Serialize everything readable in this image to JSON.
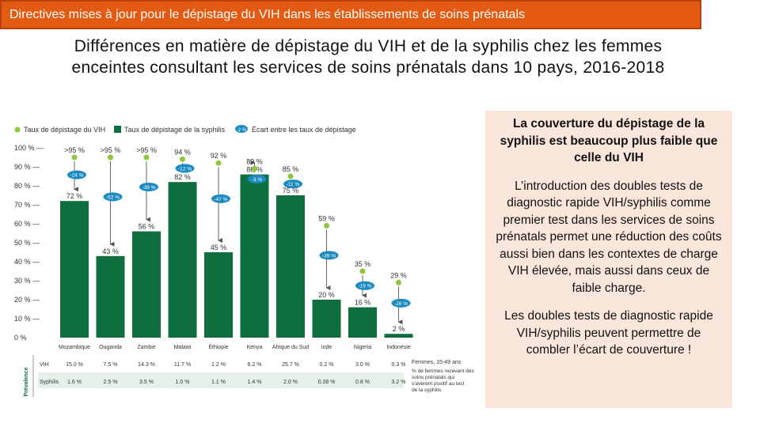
{
  "header": {
    "title": "Directives mises à jour pour le dépistage du VIH dans les établissements de soins prénatals"
  },
  "subtitle": {
    "line1": "Différences en matière de dépistage du VIH et de la syphilis chez les femmes",
    "line2": "enceintes consultant les services de soins prénatals dans 10 pays, 2016-2018"
  },
  "info_box": {
    "p1": "La couverture du dépistage de la syphilis est beaucoup plus faible que celle du VIH",
    "p2": "L’introduction des doubles tests de diagnostic rapide VIH/syphilis comme premier test dans les services de soins prénatals permet une réduction des coûts aussi bien dans les contextes de charge VIH élevée, mais aussi dans ceux de faible charge.",
    "p3": "Les doubles tests de diagnostic rapide VIH/syphilis peuvent permettre de combler l’écart de couverture !"
  },
  "colors": {
    "bar": "#0f6e3e",
    "hiv_dot": "#8dc63f",
    "gap_badge": "#1b8ac0",
    "axis_text": "#333333"
  },
  "chart_data": {
    "type": "bar",
    "legend": {
      "hiv": "Taux de dépistage du VIH",
      "syphilis": "Taux de dépistage de la syphilis",
      "gap": "Écart entre les taux de dépistage",
      "gap_badge": "-2 %"
    },
    "ylim": [
      0,
      100
    ],
    "yticks": [
      0,
      10,
      20,
      30,
      40,
      50,
      60,
      70,
      80,
      90,
      100
    ],
    "ytick_labels": [
      "0 %",
      "10 % —",
      "20 % —",
      "30 % —",
      "40 % —",
      "50 % —",
      "60 % —",
      "70 % —",
      "80 % —",
      "90 % —",
      "100 % —"
    ],
    "categories": [
      "Mozambique",
      "Ouganda",
      "Zambie",
      "Malawi",
      "Éthiopie",
      "Kenya",
      "Afrique du Sud",
      "Inde",
      "Nigeria",
      "Indonésie"
    ],
    "hiv": [
      95,
      95,
      95,
      94,
      92,
      89,
      85,
      59,
      35,
      29
    ],
    "hiv_labels": [
      ">95 %",
      ">95 %",
      ">95 %",
      "94 %",
      "92 %",
      "89 %",
      "85 %",
      "59 %",
      "35 %",
      "29 %"
    ],
    "syphilis": [
      72,
      43,
      56,
      82,
      45,
      86,
      75,
      20,
      16,
      2
    ],
    "syphilis_labels": [
      "72 %",
      "43 %",
      "56 %",
      "82 %",
      "45 %",
      "86 %",
      "75 %",
      "20 %",
      "16 %",
      "2 %"
    ],
    "gaps": [
      "-24 %",
      "-52 %",
      "-39 %",
      "-12 %",
      "-47 %",
      "-3 %",
      "-11 %",
      "-39 %",
      "-19 %",
      "-26 %"
    ],
    "prevalence": {
      "section_label": "Prévalence",
      "header_label": "Femmes, 15-49 ans",
      "rows": [
        {
          "label": "VIH",
          "values": [
            "15.0 %",
            "7.5 %",
            "14.3 %",
            "11.7 %",
            "1.2 %",
            "6.2 %",
            "25.7 %",
            "0.2 %",
            "3.0 %",
            "0.3 %"
          ]
        },
        {
          "label": "Syphilis",
          "values": [
            "1.6 %",
            "2.5 %",
            "3.5 %",
            "1.0 %",
            "1.1 %",
            "1.4 %",
            "2.0 %",
            "0.38 %",
            "0.8 %",
            "3.2 %"
          ]
        }
      ],
      "note": "% de femmes recevant des soins prénatals qui s'avèrent positif au test de la syphilis"
    }
  }
}
